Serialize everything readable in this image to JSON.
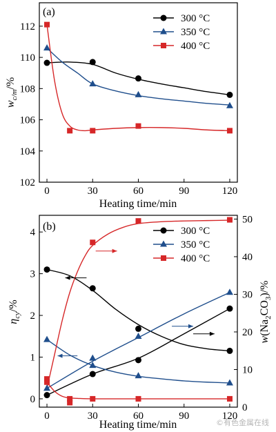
{
  "watermark": "©有色金属在线",
  "chart_data": [
    {
      "type": "scatter",
      "panel_label": "(a)",
      "xlabel": "Heating time/min",
      "ylabel": "w_c/m/%",
      "xlim": [
        -5,
        125
      ],
      "ylim": [
        102,
        113.5
      ],
      "xticks": [
        0,
        30,
        60,
        90,
        120
      ],
      "yticks": [
        102,
        104,
        106,
        108,
        110,
        112
      ],
      "legend_position": "top-right",
      "series": [
        {
          "name": "300 °C",
          "color": "#000000",
          "marker": "circle",
          "x": [
            0,
            30,
            60,
            120
          ],
          "y": [
            109.65,
            109.7,
            108.65,
            107.6
          ],
          "curve_x": [
            0,
            15,
            30,
            45,
            60,
            75,
            90,
            105,
            120
          ],
          "curve_y": [
            109.65,
            109.7,
            109.55,
            109.0,
            108.6,
            108.3,
            108.05,
            107.8,
            107.6
          ]
        },
        {
          "name": "350 °C",
          "color": "#1f4e8c",
          "marker": "triangle",
          "x": [
            0,
            30,
            60,
            120
          ],
          "y": [
            110.6,
            108.3,
            107.6,
            106.9
          ],
          "curve_x": [
            0,
            10,
            20,
            30,
            45,
            60,
            75,
            90,
            105,
            120
          ],
          "curve_y": [
            110.6,
            109.7,
            109.0,
            108.3,
            107.85,
            107.55,
            107.35,
            107.2,
            107.05,
            106.95
          ]
        },
        {
          "name": "400 °C",
          "color": "#d62728",
          "marker": "square",
          "x": [
            0,
            15,
            30,
            60,
            120
          ],
          "y": [
            112.1,
            105.3,
            105.3,
            105.6,
            105.3
          ],
          "curve_x": [
            0,
            5,
            10,
            15,
            20,
            25,
            30,
            45,
            60,
            75,
            90,
            105,
            120
          ],
          "curve_y": [
            112.1,
            108.5,
            106.4,
            105.6,
            105.35,
            105.3,
            105.35,
            105.45,
            105.5,
            105.5,
            105.45,
            105.35,
            105.3
          ]
        }
      ]
    },
    {
      "type": "scatter",
      "panel_label": "(b)",
      "xlabel": "Heating time/min",
      "ylabel": "η_cy/%",
      "y2label": "w(Na2CO3)/%",
      "xlim": [
        -5,
        125
      ],
      "ylim": [
        -0.2,
        4.4
      ],
      "y2lim": [
        0,
        51
      ],
      "xticks": [
        0,
        30,
        60,
        90,
        120
      ],
      "yticks": [
        0,
        1,
        2,
        3,
        4
      ],
      "y2ticks": [
        0,
        10,
        20,
        30,
        40,
        50
      ],
      "legend_position": "top-right",
      "series": [
        {
          "name": "300 °C",
          "color": "#000000",
          "marker": "circle",
          "axis": "left",
          "x": [
            0,
            30,
            60,
            120
          ],
          "y": [
            3.1,
            2.65,
            1.68,
            1.15
          ],
          "curve_x": [
            0,
            15,
            30,
            45,
            60,
            75,
            90,
            105,
            120
          ],
          "curve_y": [
            3.1,
            2.95,
            2.6,
            2.15,
            1.78,
            1.5,
            1.3,
            1.2,
            1.15
          ]
        },
        {
          "name": "",
          "color": "#000000",
          "marker": "circle",
          "axis": "right",
          "x": [
            0,
            30,
            60,
            120
          ],
          "y": [
            3.2,
            8.8,
            12.5,
            26.2
          ],
          "curve_x": [
            0,
            30,
            60,
            90,
            120
          ],
          "curve_y": [
            3.2,
            8.8,
            13.0,
            19.5,
            26.2
          ]
        },
        {
          "name": "350 °C",
          "color": "#1f4e8c",
          "marker": "triangle",
          "axis": "left",
          "x": [
            0,
            30,
            60,
            120
          ],
          "y": [
            1.42,
            0.8,
            0.55,
            0.38
          ],
          "curve_x": [
            0,
            15,
            30,
            45,
            60,
            75,
            90,
            105,
            120
          ],
          "curve_y": [
            1.42,
            1.05,
            0.8,
            0.64,
            0.54,
            0.48,
            0.43,
            0.4,
            0.38
          ]
        },
        {
          "name": "",
          "color": "#1f4e8c",
          "marker": "triangle",
          "axis": "right",
          "x": [
            0,
            30,
            60,
            120
          ],
          "y": [
            5.0,
            13.0,
            18.8,
            30.5
          ],
          "curve_x": [
            0,
            30,
            60,
            90,
            120
          ],
          "curve_y": [
            5.0,
            12.2,
            18.5,
            24.8,
            30.5
          ]
        },
        {
          "name": "400 °C",
          "color": "#d62728",
          "marker": "square",
          "axis": "left",
          "x": [
            0,
            15,
            30,
            60,
            120
          ],
          "y": [
            0.4,
            0.0,
            0.0,
            0.0,
            0.0
          ],
          "curve_x": [
            0,
            5,
            10,
            15,
            20,
            30,
            60,
            90,
            120
          ],
          "curve_y": [
            0.4,
            0.18,
            0.06,
            0.02,
            0.01,
            0.0,
            0.0,
            0.0,
            0.0
          ]
        },
        {
          "name": "",
          "color": "#d62728",
          "marker": "square",
          "axis": "right",
          "x": [
            0,
            15,
            30,
            60,
            120
          ],
          "y": [
            7.5,
            1.2,
            43.8,
            49.5,
            49.8
          ],
          "curve_x": [
            0,
            5,
            10,
            15,
            20,
            25,
            30,
            40,
            50,
            60,
            75,
            90,
            105,
            120
          ],
          "curve_y": [
            5.0,
            14.0,
            23.0,
            30.5,
            36.0,
            40.2,
            43.0,
            46.0,
            47.8,
            48.8,
            49.3,
            49.5,
            49.6,
            49.7
          ]
        }
      ],
      "arrows": [
        {
          "color": "#000000",
          "axis": "left",
          "from": [
            26,
            2.9
          ],
          "to": [
            12,
            2.9
          ]
        },
        {
          "color": "#000000",
          "axis": "right",
          "from": [
            96,
            19.5
          ],
          "to": [
            110,
            19.5
          ]
        },
        {
          "color": "#1f4e8c",
          "axis": "left",
          "from": [
            20,
            1.03
          ],
          "to": [
            7,
            1.03
          ]
        },
        {
          "color": "#1f4e8c",
          "axis": "right",
          "from": [
            82,
            21.5
          ],
          "to": [
            96,
            21.5
          ]
        },
        {
          "color": "#d62728",
          "axis": "right",
          "from": [
            32,
            41.5
          ],
          "to": [
            46,
            41.5
          ]
        }
      ]
    }
  ]
}
